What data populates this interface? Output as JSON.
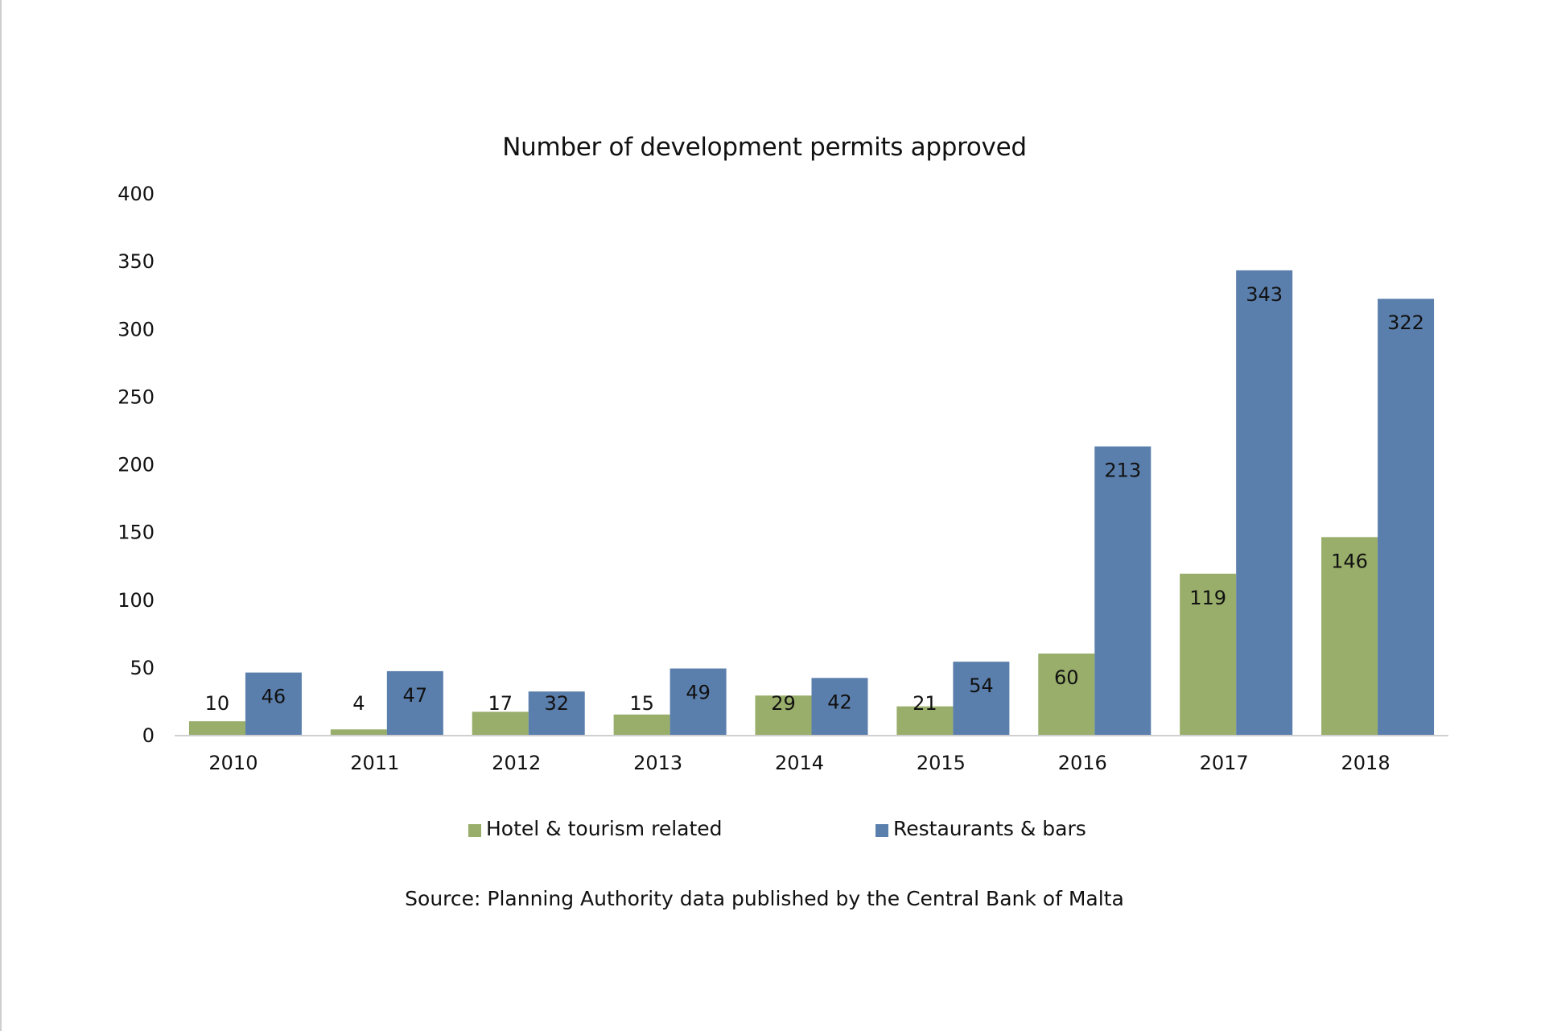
{
  "colors": {
    "hotel": "#98ae6a",
    "restaurants": "#5b7fac",
    "axis": "#d0d0d0",
    "text": "#111111"
  },
  "source_text": "Source:  Planning Authority data published by the Central Bank of Malta",
  "chart_data": {
    "type": "bar",
    "title": "Number of development permits approved",
    "xlabel": "",
    "ylabel": "",
    "categories": [
      "2010",
      "2011",
      "2012",
      "2013",
      "2014",
      "2015",
      "2016",
      "2017",
      "2018"
    ],
    "series": [
      {
        "name": "Hotel & tourism related",
        "color": "#98ae6a",
        "values": [
          10,
          4,
          17,
          15,
          29,
          21,
          60,
          119,
          146
        ]
      },
      {
        "name": "Restaurants & bars",
        "color": "#5b7fac",
        "values": [
          46,
          47,
          32,
          49,
          42,
          54,
          213,
          343,
          322
        ]
      }
    ],
    "ylim": [
      0,
      400
    ],
    "yticks": [
      "0",
      "50",
      "100",
      "150",
      "200",
      "250",
      "300",
      "350",
      "400"
    ],
    "grid": false,
    "legend_position": "bottom",
    "data_labels": true
  }
}
